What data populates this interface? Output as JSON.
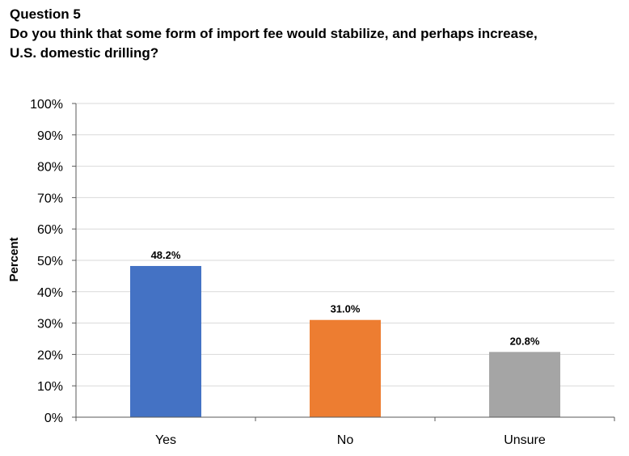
{
  "question": {
    "number": "Question 5",
    "text_line1": "Do you think that some form of import fee would stabilize, and perhaps increase,",
    "text_line2": "U.S. domestic drilling?"
  },
  "chart_data": {
    "type": "bar",
    "categories": [
      "Yes",
      "No",
      "Unsure"
    ],
    "values": [
      48.2,
      31.0,
      20.8
    ],
    "data_labels": [
      "48.2%",
      "31.0%",
      "20.8%"
    ],
    "colors": [
      "#4472C4",
      "#ED7D31",
      "#A5A5A5"
    ],
    "title": "",
    "xlabel": "",
    "ylabel": "Percent",
    "ylim": [
      0,
      100
    ],
    "yticks": [
      0,
      10,
      20,
      30,
      40,
      50,
      60,
      70,
      80,
      90,
      100
    ],
    "ytick_labels": [
      "0%",
      "10%",
      "20%",
      "30%",
      "40%",
      "50%",
      "60%",
      "70%",
      "80%",
      "90%",
      "100%"
    ],
    "grid": true,
    "legend": "none"
  }
}
